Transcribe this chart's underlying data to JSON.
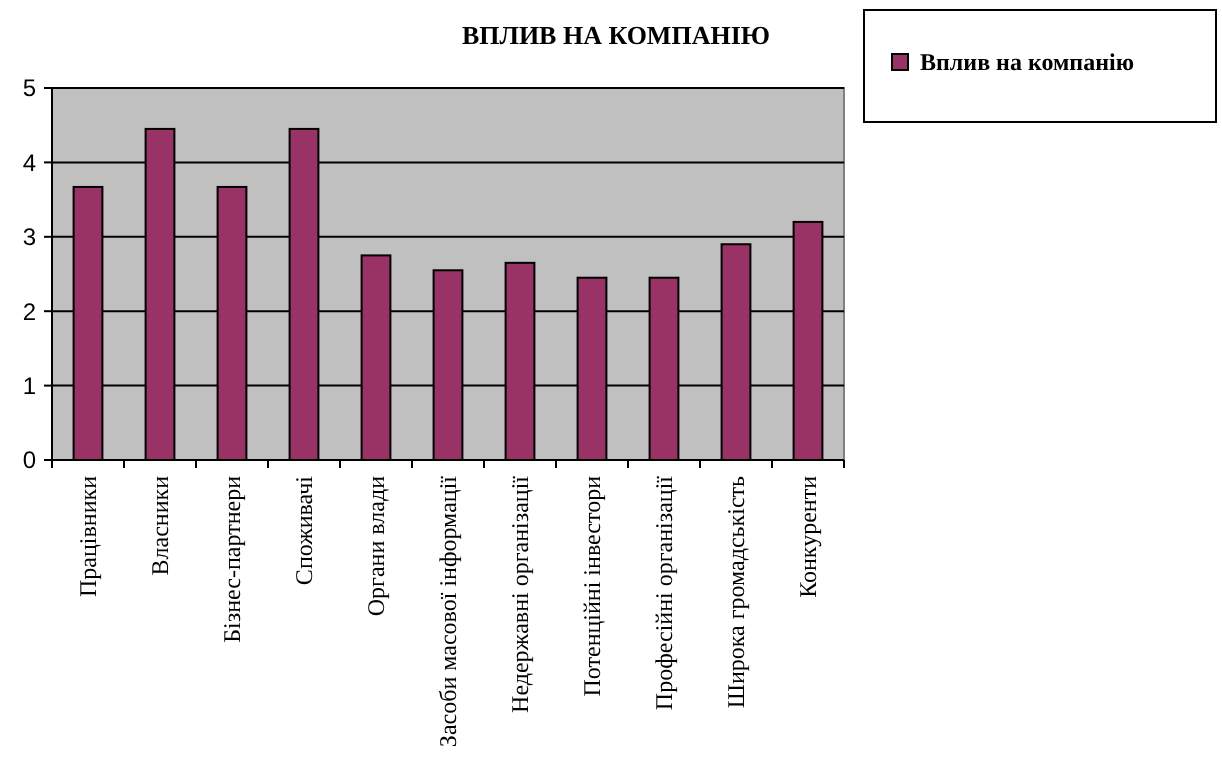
{
  "chart_data": {
    "type": "bar",
    "title": "ВПЛИВ НА КОМПАНІЮ",
    "categories": [
      "Працівники",
      "Власники",
      "Бізнес-партнери",
      "Споживачі",
      "Органи влади",
      "Засоби масової інформації",
      "Недержавні організації",
      "Потенційні інвестори",
      "Професійні організації",
      "Широка громадськість",
      "Конкуренти"
    ],
    "series": [
      {
        "name": "Вплив на компанію",
        "color": "#993366",
        "values": [
          3.67,
          4.45,
          3.67,
          4.45,
          2.75,
          2.55,
          2.65,
          2.45,
          2.45,
          2.9,
          3.2
        ]
      }
    ],
    "ylim": [
      0,
      5
    ],
    "yticks": [
      0,
      1,
      2,
      3,
      4,
      5
    ],
    "grid": "y",
    "legend": "top right"
  }
}
